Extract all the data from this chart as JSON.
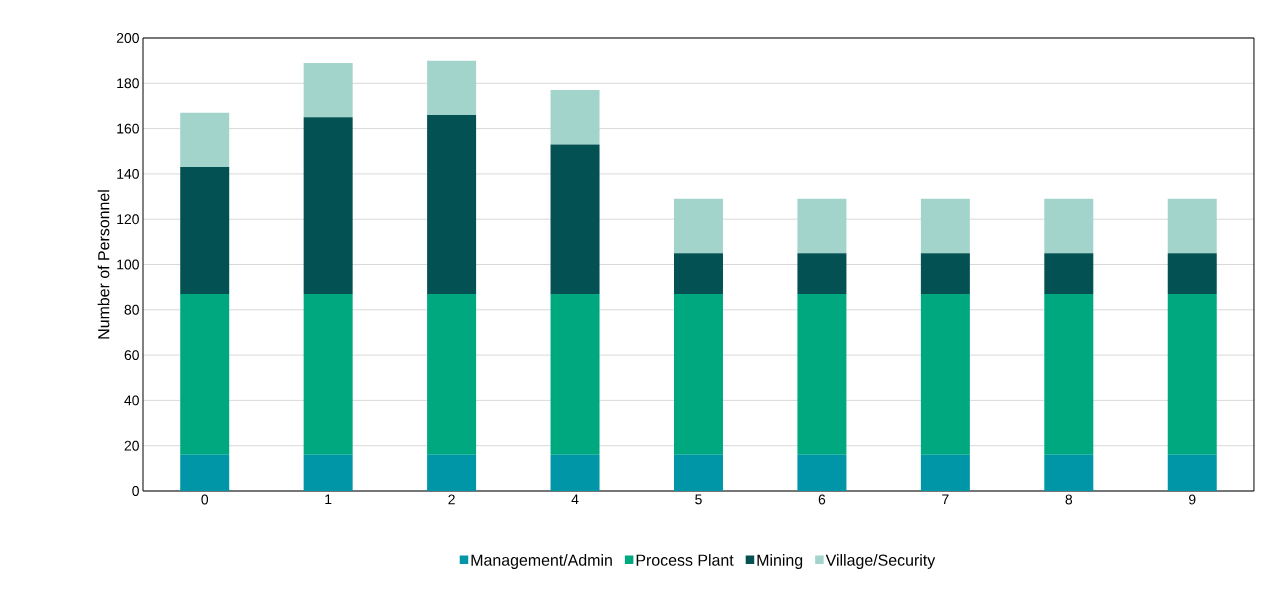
{
  "chart_data": {
    "type": "bar",
    "stacked": true,
    "ylabel": "Number of Personnel",
    "categories": [
      "0",
      "1",
      "2",
      "4",
      "5",
      "6",
      "7",
      "8",
      "9"
    ],
    "series": [
      {
        "name": "Management/Admin",
        "color": "#0096a8",
        "values": [
          16,
          16,
          16,
          16,
          16,
          16,
          16,
          16,
          16
        ]
      },
      {
        "name": "Process Plant",
        "color": "#00a880",
        "values": [
          71,
          71,
          71,
          71,
          71,
          71,
          71,
          71,
          71
        ]
      },
      {
        "name": "Mining",
        "color": "#035152",
        "values": [
          56,
          78,
          79,
          66,
          18,
          18,
          18,
          18,
          18
        ]
      },
      {
        "name": "Village/Security",
        "color": "#a2d4cc",
        "values": [
          24,
          24,
          24,
          24,
          24,
          24,
          24,
          24,
          24
        ]
      }
    ],
    "ylim": [
      0,
      200
    ],
    "yticks": [
      0,
      20,
      40,
      60,
      80,
      100,
      120,
      140,
      160,
      180,
      200
    ],
    "grid": "y",
    "legend": "bottom"
  }
}
